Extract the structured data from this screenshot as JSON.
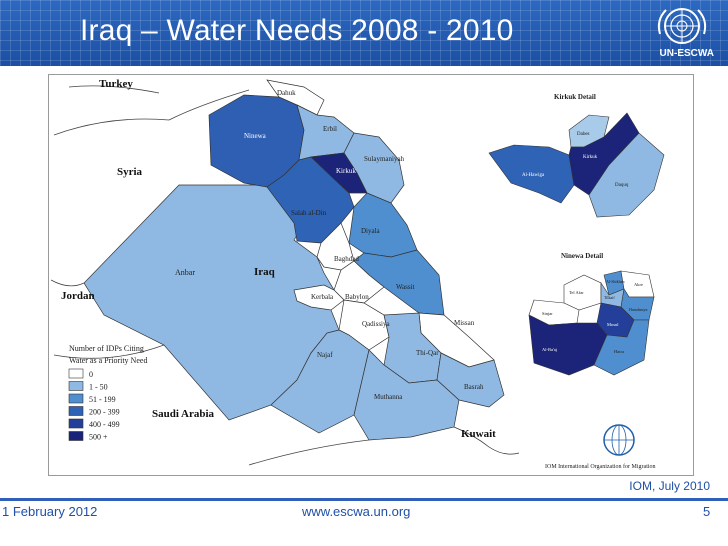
{
  "slide": {
    "title": "Iraq – Water Needs 2008 - 2010",
    "logo_text": "UN-ESCWA",
    "credit": "IOM, July 2010",
    "footer_date": "1 February 2012",
    "footer_url": "www.escwa.un.org",
    "page_number": "5"
  },
  "map": {
    "countries": {
      "turkey": "Turkey",
      "syria": "Syria",
      "jordan": "Jordan",
      "saudi": "Saudi Arabia",
      "kuwait": "Kuwait",
      "iraq": "Iraq"
    },
    "governorates": {
      "dahuk": "Dahuk",
      "erbil": "Erbil",
      "ninewa": "Ninewa",
      "kirkuk": "Kirkuk",
      "sulaymaniyah": "Sulaymaniyah",
      "salah": "Salah al-Din",
      "diyala": "Diyala",
      "anbar": "Anbar",
      "baghdad": "Baghdad",
      "wassit": "Wassit",
      "kerbala": "Kerbala",
      "babylon": "Babylon",
      "qadissiya": "Qadissiya",
      "missan": "Missan",
      "najaf": "Najaf",
      "thiqar": "Thi-Qar",
      "basrah": "Basrah",
      "muthanna": "Muthanna"
    },
    "kirkuk_detail": {
      "title": "Kirkuk Detail",
      "districts": [
        "Dabes",
        "Kirkuk",
        "Al-Hawiga",
        "Daquq"
      ]
    },
    "ninewa_detail": {
      "title": "Ninewa Detail",
      "districts": [
        "Tel Afar",
        "Sinjar",
        "Al-Shikhan",
        "Tilkaif",
        "Akre",
        "Hamdaniya",
        "Mosul",
        "Al-Ba'aj",
        "Hatra"
      ]
    },
    "legend": {
      "title_line1": "Number of IDPs Citing",
      "title_line2": "Water as a Priority Need",
      "items": [
        {
          "label": "0",
          "color": "#ffffff"
        },
        {
          "label": "1 - 50",
          "color": "#8fb9e2"
        },
        {
          "label": "51 - 199",
          "color": "#4f8fcf"
        },
        {
          "label": "200 - 399",
          "color": "#2f63b5"
        },
        {
          "label": "400 - 499",
          "color": "#233f9a"
        },
        {
          "label": "500 +",
          "color": "#1a237a"
        }
      ]
    },
    "iom_text": "IOM International Organization for Migration"
  }
}
